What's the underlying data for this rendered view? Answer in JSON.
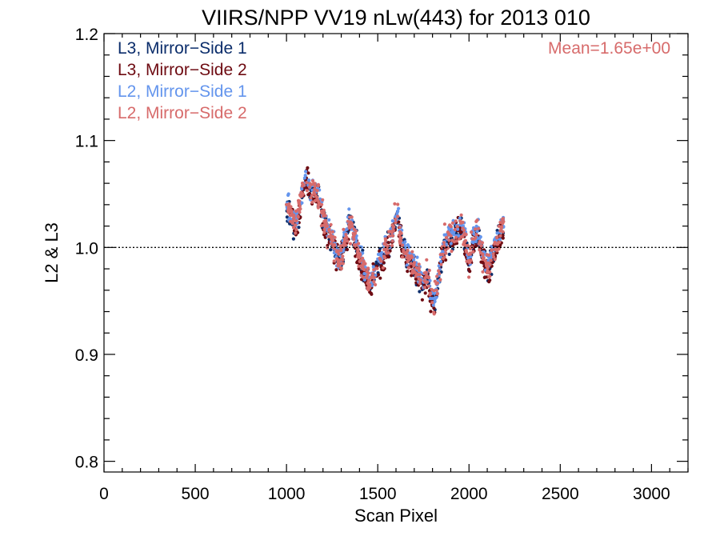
{
  "chart_data": {
    "type": "scatter",
    "title": "VIIRS/NPP VV19 nLw(443) for 2013 010",
    "xlabel": "Scan Pixel",
    "ylabel": "L2 & L3",
    "xlim": [
      0,
      3200
    ],
    "ylim": [
      0.79,
      1.2
    ],
    "xticks": [
      0,
      500,
      1000,
      1500,
      2000,
      2500,
      3000
    ],
    "yticks": [
      0.8,
      0.9,
      1.0,
      1.1,
      1.2
    ],
    "ytick_labels": [
      "0.8",
      "0.9",
      "1.0",
      "1.1",
      "1.2"
    ],
    "reference_line": 1.0,
    "annotation": "Mean=1.65e+00",
    "legend_position": "top-left",
    "series": [
      {
        "name": "L3, Mirror−Side 1",
        "color": "#0b2d6b"
      },
      {
        "name": "L3, Mirror−Side 2",
        "color": "#6e0b12"
      },
      {
        "name": "L2, Mirror−Side 1",
        "color": "#6495ed"
      },
      {
        "name": "L2, Mirror−Side 2",
        "color": "#d76b6b"
      }
    ],
    "profile_x": [
      1000,
      1020,
      1040,
      1060,
      1080,
      1100,
      1115,
      1130,
      1150,
      1175,
      1200,
      1225,
      1250,
      1270,
      1290,
      1310,
      1335,
      1355,
      1380,
      1400,
      1430,
      1460,
      1480,
      1510,
      1540,
      1570,
      1590,
      1610,
      1630,
      1660,
      1690,
      1720,
      1750,
      1770,
      1790,
      1810,
      1830,
      1850,
      1870,
      1900,
      1930,
      1960,
      1980,
      2000,
      2020,
      2050,
      2070,
      2090,
      2110,
      2130,
      2160,
      2185
    ],
    "profile_y": [
      1.04,
      1.03,
      1.02,
      1.025,
      1.045,
      1.06,
      1.065,
      1.05,
      1.055,
      1.045,
      1.025,
      1.015,
      1.005,
      0.995,
      0.985,
      1.0,
      1.015,
      1.02,
      1.005,
      0.99,
      0.975,
      0.965,
      0.975,
      0.985,
      0.995,
      1.005,
      1.02,
      1.03,
      1.005,
      0.99,
      0.985,
      0.975,
      0.965,
      0.975,
      0.955,
      0.945,
      0.965,
      0.99,
      1.005,
      1.01,
      1.015,
      1.02,
      1.005,
      0.985,
      1.005,
      1.015,
      0.995,
      0.985,
      0.98,
      0.995,
      1.005,
      1.02
    ],
    "x_range": [
      1000,
      2190
    ]
  }
}
